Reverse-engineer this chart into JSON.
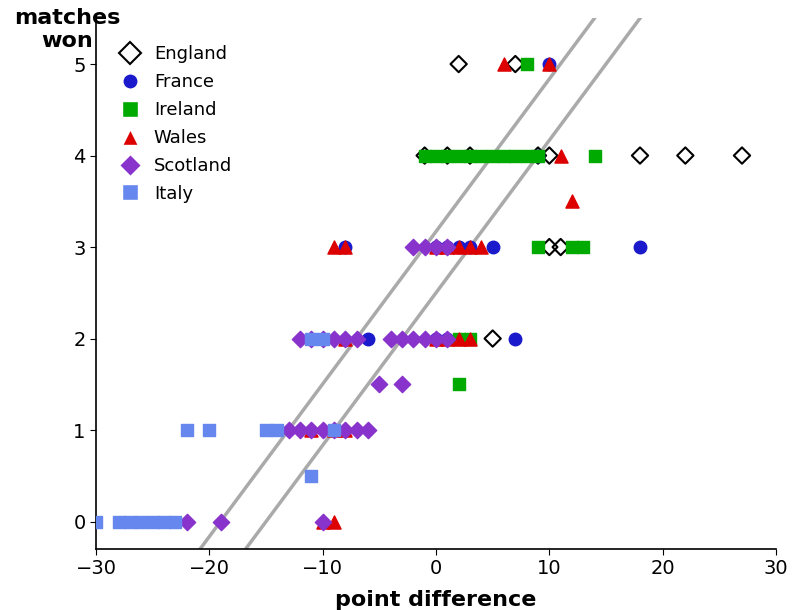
{
  "title_y": "matches\nwon",
  "title_x": "point difference",
  "xlim": [
    -30,
    30
  ],
  "ylim": [
    -0.3,
    5.5
  ],
  "yticks": [
    0,
    1,
    2,
    3,
    4,
    5
  ],
  "xticks": [
    -30,
    -20,
    -10,
    0,
    10,
    20,
    30
  ],
  "slope": 0.1667,
  "line_c1": 2.5,
  "line_c2": 3.17,
  "line_color": "#aaaaaa",
  "england": {
    "points": [
      [
        -1,
        4
      ],
      [
        1,
        4
      ],
      [
        3,
        4
      ],
      [
        7,
        5
      ],
      [
        9,
        4
      ],
      [
        10,
        4
      ],
      [
        10,
        3
      ],
      [
        11,
        3
      ],
      [
        18,
        4
      ],
      [
        22,
        4
      ],
      [
        27,
        4
      ],
      [
        5,
        2
      ],
      [
        2,
        5
      ]
    ]
  },
  "france": {
    "points": [
      [
        -8,
        3
      ],
      [
        -6,
        2
      ],
      [
        0,
        2
      ],
      [
        1,
        2
      ],
      [
        2,
        3
      ],
      [
        3,
        3
      ],
      [
        5,
        3
      ],
      [
        7,
        2
      ],
      [
        9,
        4
      ],
      [
        10,
        5
      ],
      [
        18,
        3
      ],
      [
        1,
        3
      ],
      [
        0,
        3
      ]
    ]
  },
  "ireland": {
    "points": [
      [
        -1,
        4
      ],
      [
        0,
        4
      ],
      [
        1,
        4
      ],
      [
        2,
        4
      ],
      [
        3,
        4
      ],
      [
        4,
        4
      ],
      [
        5,
        4
      ],
      [
        6,
        4
      ],
      [
        7,
        4
      ],
      [
        8,
        4
      ],
      [
        9,
        4
      ],
      [
        14,
        4
      ],
      [
        8,
        5
      ],
      [
        9,
        3
      ],
      [
        12,
        3
      ],
      [
        13,
        3
      ],
      [
        2,
        2
      ],
      [
        3,
        2
      ],
      [
        2,
        1.5
      ]
    ]
  },
  "wales": {
    "points": [
      [
        -10,
        0
      ],
      [
        -9,
        0
      ],
      [
        -11,
        1
      ],
      [
        -9,
        1
      ],
      [
        -9,
        3
      ],
      [
        -8,
        3
      ],
      [
        -8,
        2
      ],
      [
        0,
        2
      ],
      [
        1,
        2
      ],
      [
        2,
        2
      ],
      [
        3,
        2
      ],
      [
        0,
        3
      ],
      [
        1,
        3
      ],
      [
        2,
        3
      ],
      [
        3,
        3
      ],
      [
        4,
        3
      ],
      [
        6,
        5
      ],
      [
        10,
        5
      ],
      [
        11,
        4
      ],
      [
        12,
        3.5
      ],
      [
        -8,
        1
      ]
    ]
  },
  "scotland": {
    "points": [
      [
        -22,
        0
      ],
      [
        -19,
        0
      ],
      [
        -12,
        2
      ],
      [
        -11,
        2
      ],
      [
        -10,
        2
      ],
      [
        -9,
        2
      ],
      [
        -8,
        2
      ],
      [
        -7,
        2
      ],
      [
        -13,
        1
      ],
      [
        -12,
        1
      ],
      [
        -11,
        1
      ],
      [
        -10,
        1
      ],
      [
        -9,
        1
      ],
      [
        -8,
        1
      ],
      [
        -7,
        1
      ],
      [
        -6,
        1
      ],
      [
        -4,
        2
      ],
      [
        -3,
        2
      ],
      [
        -2,
        2
      ],
      [
        -1,
        2
      ],
      [
        0,
        2
      ],
      [
        1,
        2
      ],
      [
        -2,
        3
      ],
      [
        -1,
        3
      ],
      [
        0,
        3
      ],
      [
        1,
        3
      ],
      [
        -5,
        1.5
      ],
      [
        -10,
        0
      ],
      [
        -3,
        1.5
      ]
    ]
  },
  "italy": {
    "points": [
      [
        -30,
        0
      ],
      [
        -28,
        0
      ],
      [
        -27,
        0
      ],
      [
        -26,
        0
      ],
      [
        -25,
        0
      ],
      [
        -24,
        0
      ],
      [
        -23,
        0
      ],
      [
        -22,
        1
      ],
      [
        -20,
        1
      ],
      [
        -11,
        2
      ],
      [
        -10,
        2
      ],
      [
        -11,
        0.5
      ],
      [
        -14,
        1
      ],
      [
        -15,
        1
      ],
      [
        -9,
        1
      ]
    ]
  }
}
